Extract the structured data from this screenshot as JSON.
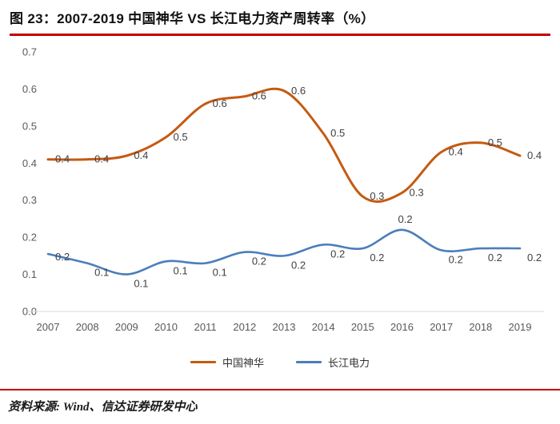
{
  "header": {
    "title": "图 23：2007-2019 中国神华 VS 长江电力资产周转率（%）"
  },
  "footer": {
    "source": "资料来源: Wind、信达证券研发中心"
  },
  "colors": {
    "shenhua": "#C55A11",
    "changjiang": "#4A7EBB",
    "accent_red": "#C00000",
    "axis_text": "#595959",
    "data_label": "#404040",
    "axis_line": "#D9D9D9"
  },
  "chart_data": {
    "type": "line",
    "title": "2007-2019 中国神华 VS 长江电力资产周转率（%）",
    "categories": [
      2007,
      2008,
      2009,
      2010,
      2011,
      2012,
      2013,
      2014,
      2015,
      2016,
      2017,
      2018,
      2019
    ],
    "series": [
      {
        "name": "中国神华",
        "color_key": "shenhua",
        "values": [
          0.41,
          0.41,
          0.42,
          0.47,
          0.56,
          0.58,
          0.595,
          0.48,
          0.31,
          0.32,
          0.43,
          0.455,
          0.42
        ],
        "labels": [
          "0.4",
          "0.4",
          "0.4",
          "0.5",
          "0.6",
          "0.6",
          "0.6",
          "0.5",
          "0.3",
          "0.3",
          "0.4",
          "0.5",
          "0.4"
        ]
      },
      {
        "name": "长江电力",
        "color_key": "changjiang",
        "values": [
          0.155,
          0.13,
          0.1,
          0.135,
          0.13,
          0.16,
          0.15,
          0.18,
          0.17,
          0.22,
          0.165,
          0.17,
          0.17
        ],
        "labels": [
          "0.2",
          "0.1",
          "0.1",
          "0.1",
          "0.1",
          "0.2",
          "0.2",
          "0.2",
          "0.2",
          "0.2",
          "0.2",
          "0.2",
          "0.2"
        ]
      }
    ],
    "ylim": [
      0.0,
      0.7
    ],
    "ytick_step": 0.1,
    "ytick_labels": [
      "0.0",
      "0.1",
      "0.2",
      "0.3",
      "0.4",
      "0.5",
      "0.6",
      "0.7"
    ],
    "grid": false,
    "legend_position": "bottom"
  }
}
